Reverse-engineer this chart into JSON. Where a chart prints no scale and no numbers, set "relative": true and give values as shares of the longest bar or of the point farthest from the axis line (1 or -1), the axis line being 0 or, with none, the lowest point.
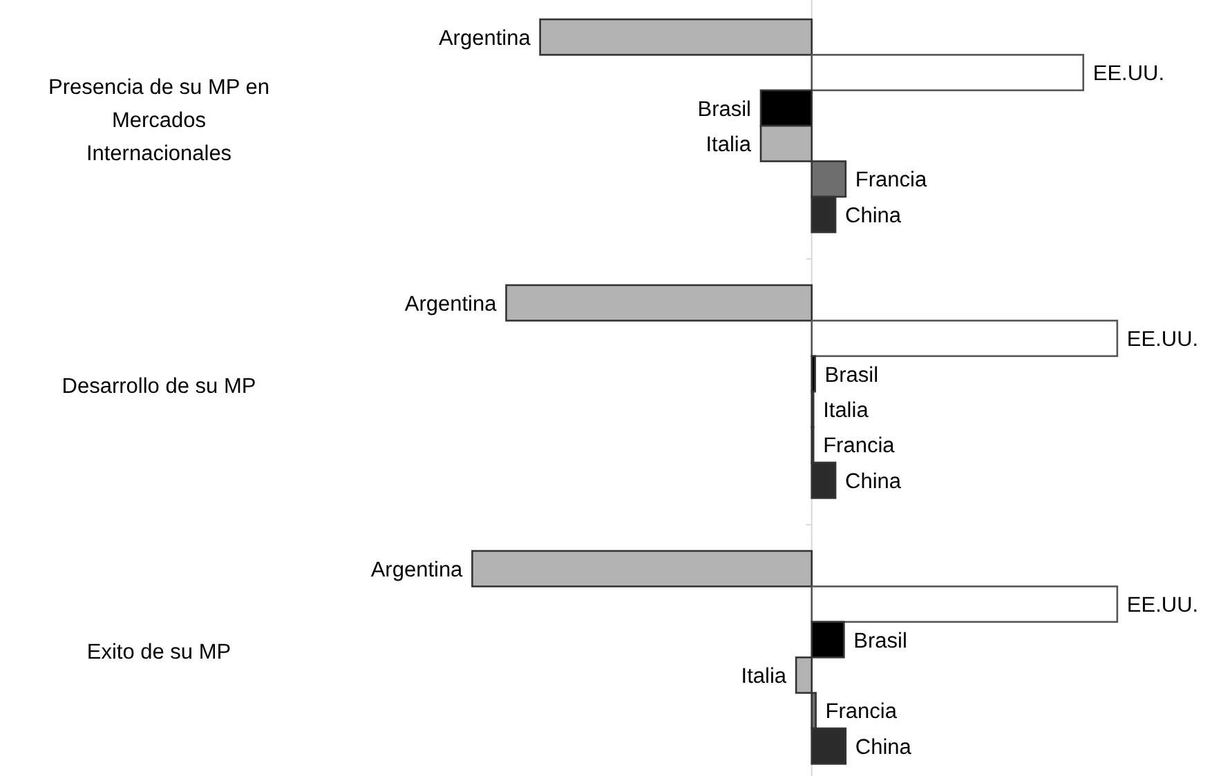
{
  "chart_data": {
    "type": "bar",
    "orientation": "horizontal",
    "relative": true,
    "categories": [
      "Presencia de su MP en Mercados Internacionales",
      "Desarrollo de su MP",
      "Exito de su MP"
    ],
    "series": [
      {
        "name": "Argentina",
        "color": "#b3b3b3",
        "values": [
          -0.8,
          -0.9,
          -1
        ]
      },
      {
        "name": "EE.UU.",
        "color": "#ffffff",
        "values": [
          0.8,
          0.9,
          0.9
        ]
      },
      {
        "name": "Brasil",
        "color": "#000000",
        "values": [
          -0.15,
          0.01,
          0.095
        ]
      },
      {
        "name": "Italia",
        "color": "#b3b3b3",
        "values": [
          -0.15,
          0.005,
          -0.046
        ]
      },
      {
        "name": "Francia",
        "color": "#6e6e6e",
        "values": [
          0.1,
          0.005,
          0.012
        ]
      },
      {
        "name": "China",
        "color": "#2b2b2b",
        "values": [
          0.07,
          0.07,
          0.1
        ]
      }
    ]
  }
}
